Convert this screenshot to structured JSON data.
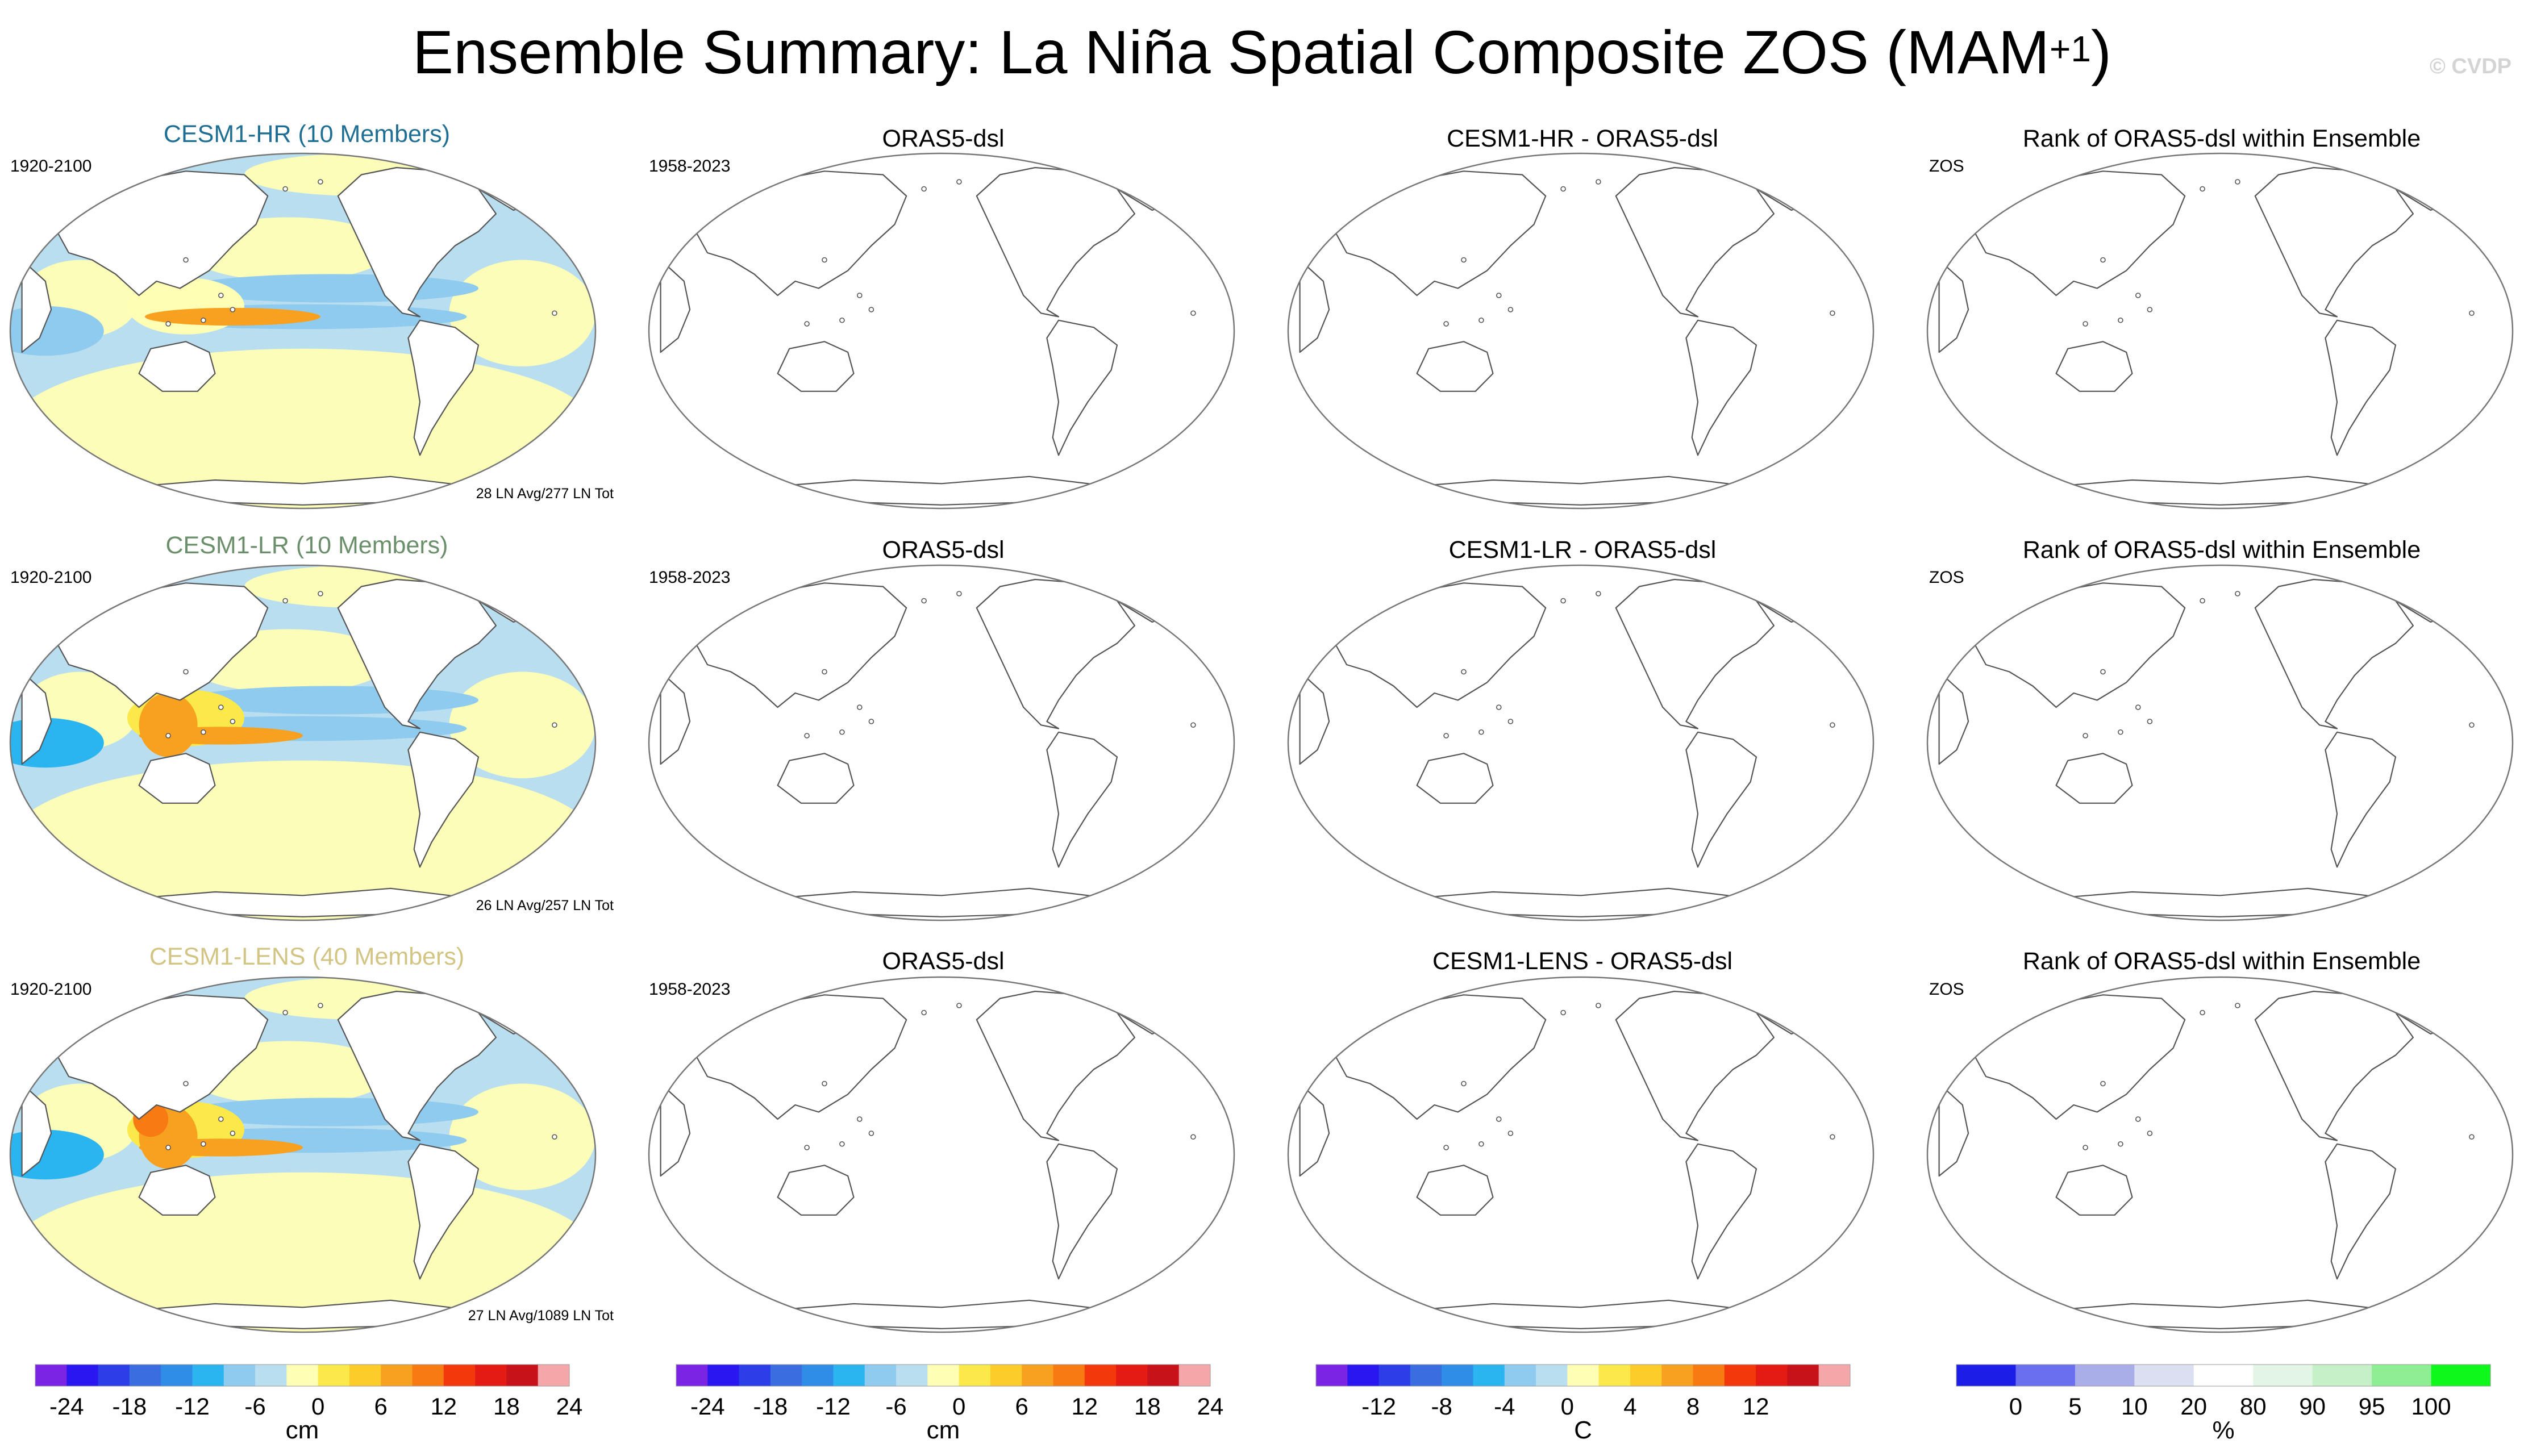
{
  "title": {
    "main": "Ensemble Summary: La Niña Spatial Composite ZOS (MAM",
    "superscript": "+1",
    "close": ")"
  },
  "watermark": "© CVDP",
  "colors": {
    "hr_title": "#1f6e93",
    "lr_title": "#6b8f6a",
    "lens_title": "#d2c483"
  },
  "rows": [
    {
      "model": {
        "title": "CESM1-HR (10 Members)",
        "years": "1920-2100",
        "footer": "28 LN Avg/277 LN Tot"
      },
      "obs": {
        "title": "ORAS5-dsl",
        "years": "1958-2023"
      },
      "diff": {
        "title": "CESM1-HR - ORAS5-dsl"
      },
      "rank": {
        "title": "Rank of ORAS5-dsl within Ensemble",
        "variable": "ZOS"
      }
    },
    {
      "model": {
        "title": "CESM1-LR (10 Members)",
        "years": "1920-2100",
        "footer": "26 LN Avg/257 LN Tot"
      },
      "obs": {
        "title": "ORAS5-dsl",
        "years": "1958-2023"
      },
      "diff": {
        "title": "CESM1-LR - ORAS5-dsl"
      },
      "rank": {
        "title": "Rank of ORAS5-dsl within Ensemble",
        "variable": "ZOS"
      }
    },
    {
      "model": {
        "title": "CESM1-LENS (40 Members)",
        "years": "1920-2100",
        "footer": "27 LN Avg/1089 LN Tot"
      },
      "obs": {
        "title": "ORAS5-dsl",
        "years": "1958-2023"
      },
      "diff": {
        "title": "CESM1-LENS - ORAS5-dsl"
      },
      "rank": {
        "title": "Rank of ORAS5-dsl within Ensemble",
        "variable": "ZOS"
      }
    }
  ],
  "colorbars": [
    {
      "unit": "cm",
      "colors": [
        "#7b24e4",
        "#2a16f0",
        "#2c3ee8",
        "#3a6ee0",
        "#2f8de8",
        "#2ab4f0",
        "#8fcbee",
        "#b9def0",
        "#fefeb4",
        "#fbe84a",
        "#fbcc2a",
        "#f8a120",
        "#f77a12",
        "#f3380c",
        "#e31b14",
        "#c8121a",
        "#f5a6a8"
      ],
      "ticks": [
        "-24",
        "-18",
        "-12",
        "-6",
        "0",
        "6",
        "12",
        "18",
        "24"
      ]
    },
    {
      "unit": "cm",
      "colors": [
        "#7b24e4",
        "#2a16f0",
        "#2c3ee8",
        "#3a6ee0",
        "#2f8de8",
        "#2ab4f0",
        "#8fcbee",
        "#b9def0",
        "#fefeb4",
        "#fbe84a",
        "#fbcc2a",
        "#f8a120",
        "#f77a12",
        "#f3380c",
        "#e31b14",
        "#c8121a",
        "#f5a6a8"
      ],
      "ticks": [
        "-24",
        "-18",
        "-12",
        "-6",
        "0",
        "6",
        "12",
        "18",
        "24"
      ]
    },
    {
      "unit": "C",
      "colors": [
        "#7b24e4",
        "#2a16f0",
        "#2c3ee8",
        "#3a6ee0",
        "#2f8de8",
        "#2ab4f0",
        "#8fcbee",
        "#b9def0",
        "#fefeb4",
        "#fbe84a",
        "#fbcc2a",
        "#f8a120",
        "#f77a12",
        "#f3380c",
        "#e31b14",
        "#c8121a",
        "#f5a6a8"
      ],
      "ticks": [
        "-12",
        "-8",
        "-4",
        "0",
        "4",
        "8",
        "12"
      ]
    },
    {
      "unit": "%",
      "colors": [
        "#1d1de8",
        "#6a6ff0",
        "#aaaee8",
        "#dcdff2",
        "#ffffff",
        "#e3f6e5",
        "#c6f0c8",
        "#8eee94",
        "#0ff81c"
      ],
      "ticks": [
        "0",
        "5",
        "10",
        "20",
        "80",
        "90",
        "95",
        "100"
      ]
    }
  ]
}
